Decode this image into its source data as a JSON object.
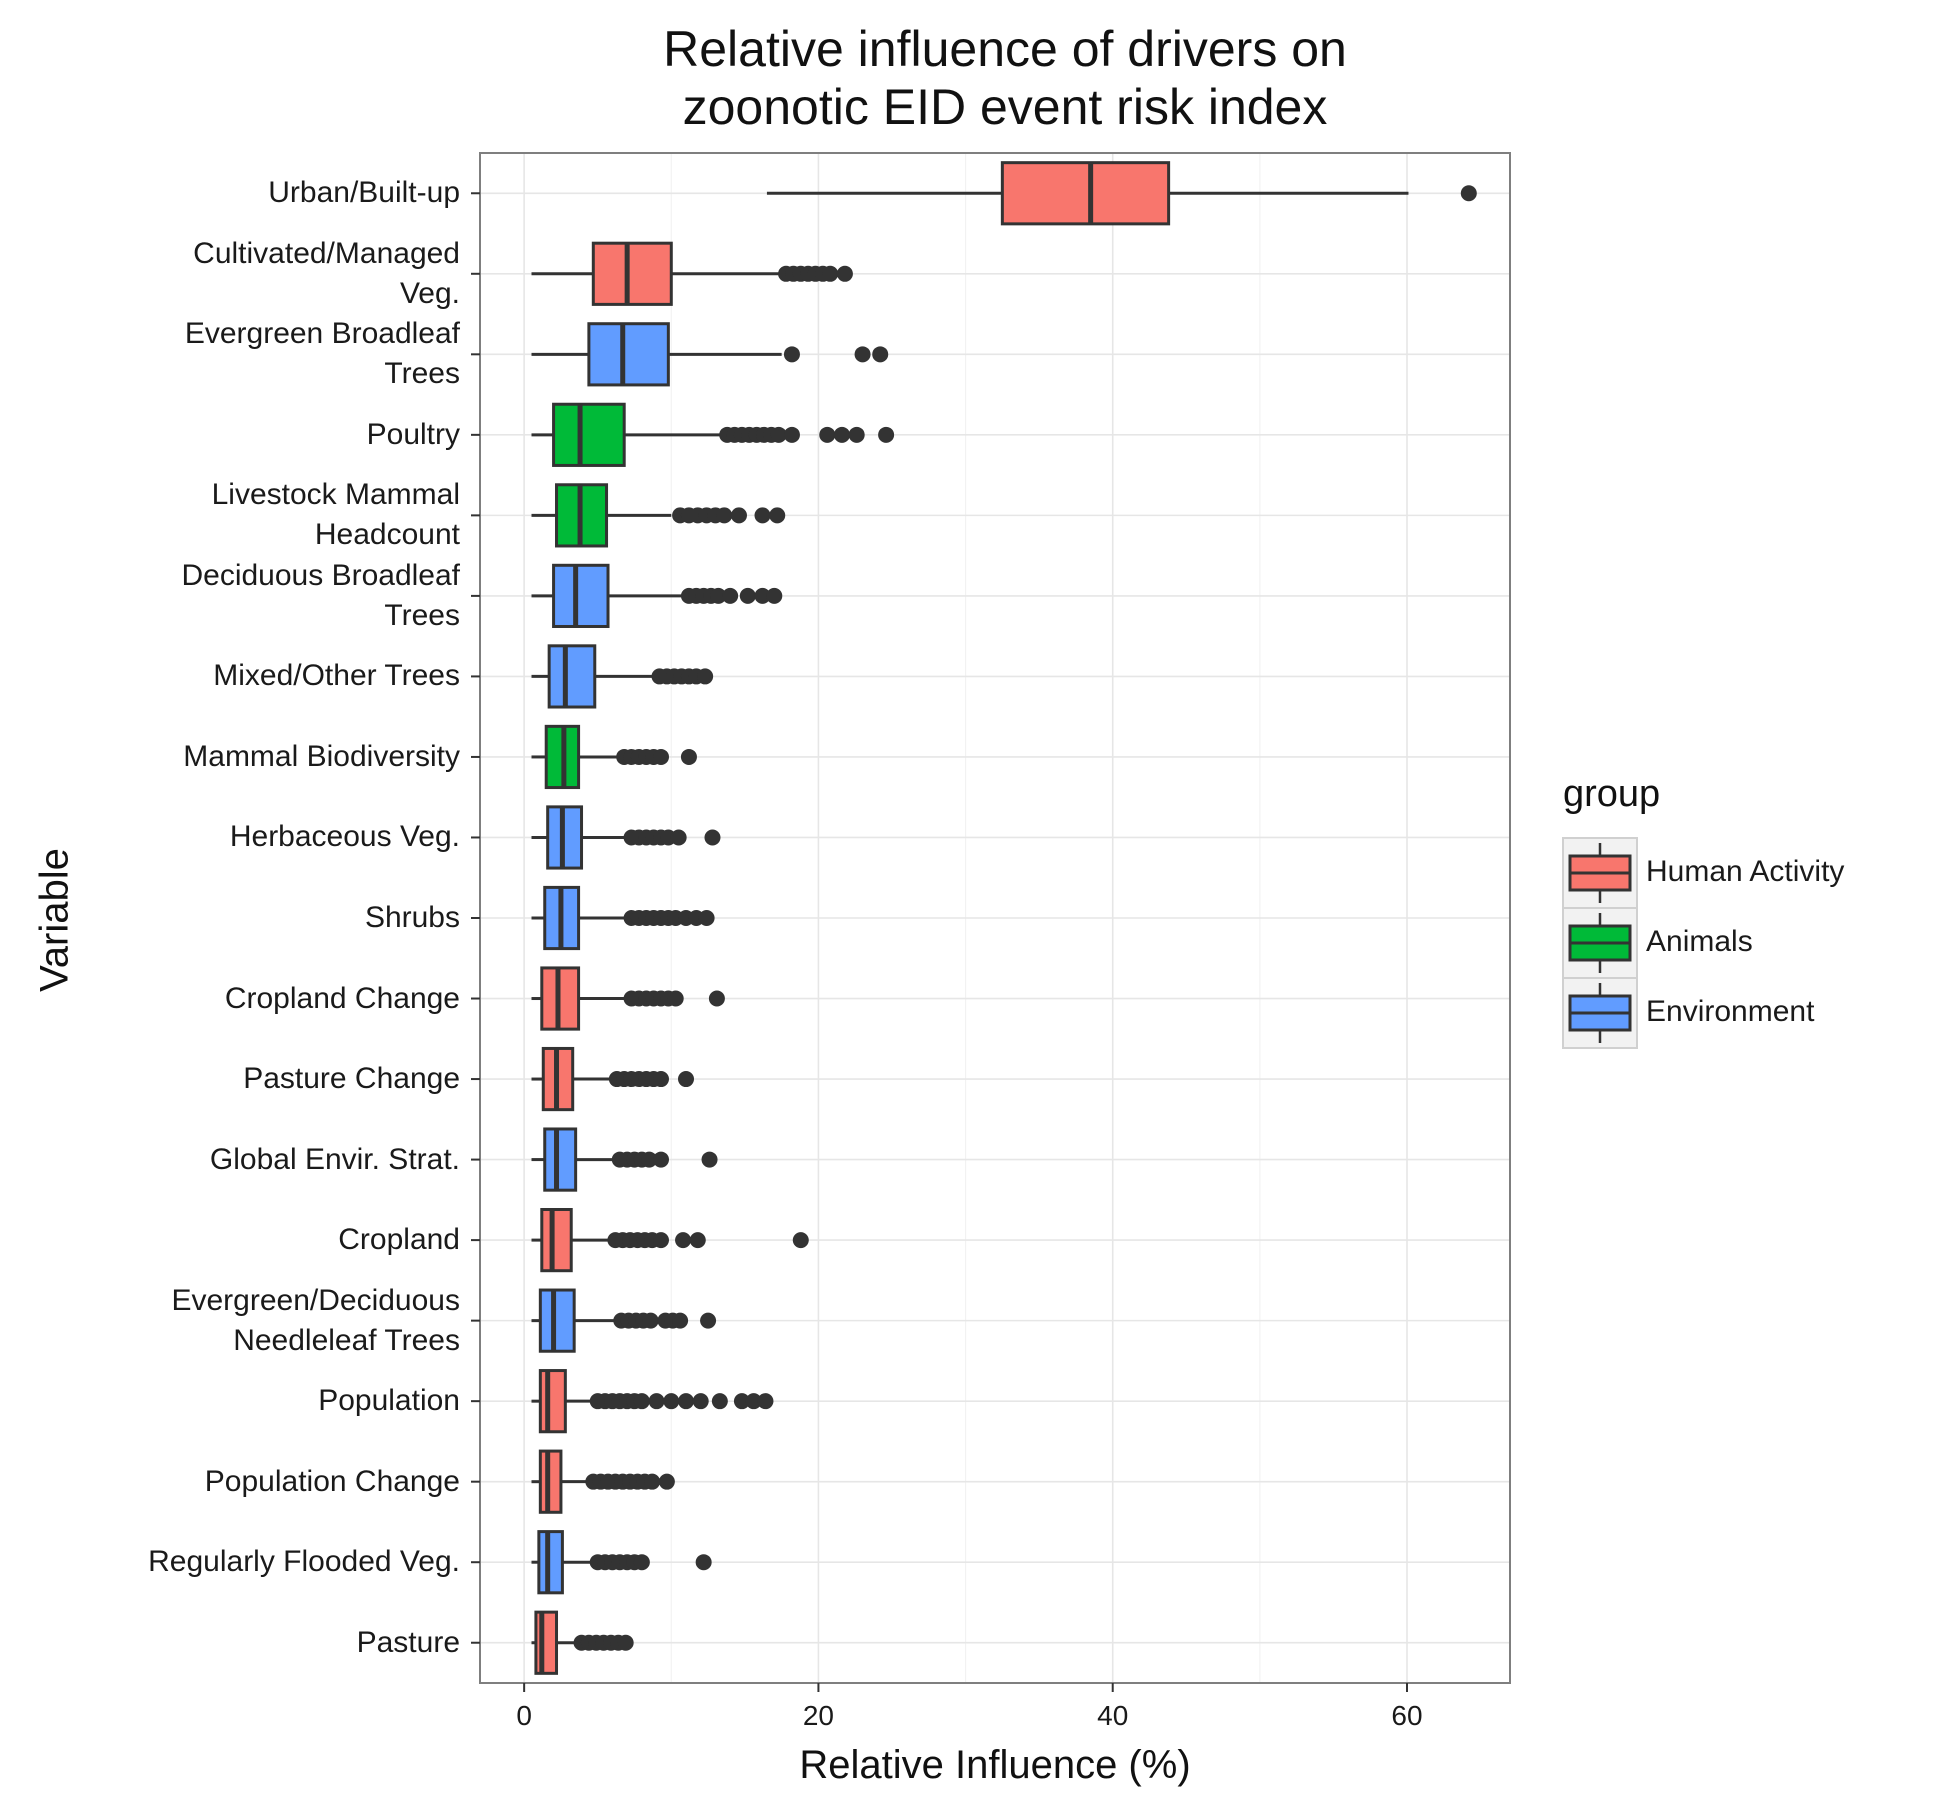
{
  "chart_data": {
    "type": "boxplot",
    "title_lines": [
      "Relative influence of drivers on",
      "zoonotic EID event risk index"
    ],
    "xlabel": "Relative Influence (%)",
    "ylabel": "Variable",
    "xlim": [
      -3,
      67
    ],
    "xticks": [
      0,
      20,
      40,
      60
    ],
    "grid": true,
    "legend": {
      "title": "group",
      "placement": "right",
      "entries": [
        {
          "name": "Human Activity",
          "color": "#F8766D"
        },
        {
          "name": "Animals",
          "color": "#00BA38"
        },
        {
          "name": "Environment",
          "color": "#619CFF"
        }
      ]
    },
    "boxes": [
      {
        "label": [
          "Urban/Built-up"
        ],
        "group": "Human Activity",
        "lower_whisker": 16.5,
        "q1": 32.5,
        "median": 38.5,
        "q3": 43.8,
        "upper_whisker": 60.1,
        "outliers": [
          64.2
        ]
      },
      {
        "label": [
          "Cultivated/Managed",
          "Veg."
        ],
        "group": "Human Activity",
        "lower_whisker": 0.5,
        "q1": 4.7,
        "median": 7.0,
        "q3": 10.0,
        "upper_whisker": 17.5,
        "outliers": [
          17.8,
          18.3,
          18.8,
          19.3,
          19.8,
          20.3,
          20.8,
          21.8
        ]
      },
      {
        "label": [
          "Evergreen Broadleaf",
          "Trees"
        ],
        "group": "Environment",
        "lower_whisker": 0.5,
        "q1": 4.4,
        "median": 6.7,
        "q3": 9.8,
        "upper_whisker": 17.5,
        "outliers": [
          18.2,
          23.0,
          24.2
        ]
      },
      {
        "label": [
          "Poultry"
        ],
        "group": "Animals",
        "lower_whisker": 0.5,
        "q1": 2.0,
        "median": 3.8,
        "q3": 6.8,
        "upper_whisker": 13.5,
        "outliers": [
          13.8,
          14.3,
          14.8,
          15.3,
          15.8,
          16.3,
          16.8,
          17.3,
          18.2,
          20.6,
          21.6,
          22.6,
          24.6
        ]
      },
      {
        "label": [
          "Livestock Mammal",
          "Headcount"
        ],
        "group": "Animals",
        "lower_whisker": 0.5,
        "q1": 2.2,
        "median": 3.8,
        "q3": 5.6,
        "upper_whisker": 10.0,
        "outliers": [
          10.6,
          11.2,
          11.8,
          12.4,
          13.0,
          13.6,
          14.6,
          16.2,
          17.2
        ]
      },
      {
        "label": [
          "Deciduous Broadleaf",
          "Trees"
        ],
        "group": "Environment",
        "lower_whisker": 0.5,
        "q1": 2.0,
        "median": 3.5,
        "q3": 5.7,
        "upper_whisker": 10.8,
        "outliers": [
          11.2,
          11.7,
          12.2,
          12.7,
          13.2,
          14.0,
          15.2,
          16.2,
          17.0
        ]
      },
      {
        "label": [
          "Mixed/Other Trees"
        ],
        "group": "Environment",
        "lower_whisker": 0.5,
        "q1": 1.7,
        "median": 2.8,
        "q3": 4.8,
        "upper_whisker": 9.0,
        "outliers": [
          9.2,
          9.7,
          10.2,
          10.7,
          11.2,
          11.7,
          12.3
        ]
      },
      {
        "label": [
          "Mammal Biodiversity"
        ],
        "group": "Animals",
        "lower_whisker": 0.5,
        "q1": 1.5,
        "median": 2.7,
        "q3": 3.7,
        "upper_whisker": 6.5,
        "outliers": [
          6.8,
          7.3,
          7.8,
          8.3,
          8.8,
          9.3,
          11.2
        ]
      },
      {
        "label": [
          "Herbaceous Veg."
        ],
        "group": "Environment",
        "lower_whisker": 0.5,
        "q1": 1.6,
        "median": 2.6,
        "q3": 3.9,
        "upper_whisker": 7.0,
        "outliers": [
          7.3,
          7.8,
          8.3,
          8.8,
          9.3,
          9.8,
          10.5,
          12.8
        ]
      },
      {
        "label": [
          "Shrubs"
        ],
        "group": "Environment",
        "lower_whisker": 0.5,
        "q1": 1.4,
        "median": 2.5,
        "q3": 3.7,
        "upper_whisker": 7.0,
        "outliers": [
          7.3,
          7.8,
          8.3,
          8.8,
          9.3,
          9.8,
          10.3,
          11.0,
          11.7,
          12.4
        ]
      },
      {
        "label": [
          "Cropland Change"
        ],
        "group": "Human Activity",
        "lower_whisker": 0.5,
        "q1": 1.2,
        "median": 2.3,
        "q3": 3.7,
        "upper_whisker": 7.0,
        "outliers": [
          7.3,
          7.8,
          8.3,
          8.8,
          9.3,
          9.8,
          10.3,
          13.1
        ]
      },
      {
        "label": [
          "Pasture Change"
        ],
        "group": "Human Activity",
        "lower_whisker": 0.5,
        "q1": 1.3,
        "median": 2.2,
        "q3": 3.3,
        "upper_whisker": 6.0,
        "outliers": [
          6.3,
          6.8,
          7.3,
          7.8,
          8.3,
          8.8,
          9.3,
          11.0
        ]
      },
      {
        "label": [
          "Global Envir. Strat."
        ],
        "group": "Environment",
        "lower_whisker": 0.5,
        "q1": 1.4,
        "median": 2.2,
        "q3": 3.5,
        "upper_whisker": 6.2,
        "outliers": [
          6.5,
          7.0,
          7.5,
          8.0,
          8.5,
          9.3,
          12.6
        ]
      },
      {
        "label": [
          "Cropland"
        ],
        "group": "Human Activity",
        "lower_whisker": 0.5,
        "q1": 1.2,
        "median": 1.9,
        "q3": 3.2,
        "upper_whisker": 5.8,
        "outliers": [
          6.2,
          6.7,
          7.2,
          7.7,
          8.2,
          8.7,
          9.3,
          10.8,
          11.8,
          18.8
        ]
      },
      {
        "label": [
          "Evergreen/Deciduous",
          "Needleleaf Trees"
        ],
        "group": "Environment",
        "lower_whisker": 0.5,
        "q1": 1.1,
        "median": 2.0,
        "q3": 3.4,
        "upper_whisker": 6.3,
        "outliers": [
          6.6,
          7.1,
          7.6,
          8.1,
          8.6,
          9.6,
          10.1,
          10.6,
          12.5
        ]
      },
      {
        "label": [
          "Population"
        ],
        "group": "Human Activity",
        "lower_whisker": 0.5,
        "q1": 1.1,
        "median": 1.6,
        "q3": 2.8,
        "upper_whisker": 4.8,
        "outliers": [
          5.0,
          5.5,
          6.0,
          6.5,
          7.0,
          7.5,
          8.0,
          9.0,
          10.0,
          11.0,
          12.0,
          13.3,
          14.8,
          15.6,
          16.4
        ]
      },
      {
        "label": [
          "Population Change"
        ],
        "group": "Human Activity",
        "lower_whisker": 0.5,
        "q1": 1.1,
        "median": 1.6,
        "q3": 2.5,
        "upper_whisker": 4.5,
        "outliers": [
          4.7,
          5.2,
          5.7,
          6.2,
          6.7,
          7.2,
          7.7,
          8.2,
          8.7,
          9.7
        ]
      },
      {
        "label": [
          "Regularly Flooded Veg."
        ],
        "group": "Environment",
        "lower_whisker": 0.5,
        "q1": 1.0,
        "median": 1.6,
        "q3": 2.6,
        "upper_whisker": 4.7,
        "outliers": [
          5.0,
          5.5,
          6.0,
          6.5,
          7.0,
          7.5,
          8.0,
          12.2
        ]
      },
      {
        "label": [
          "Pasture"
        ],
        "group": "Human Activity",
        "lower_whisker": 0.5,
        "q1": 0.8,
        "median": 1.2,
        "q3": 2.2,
        "upper_whisker": 3.6,
        "outliers": [
          3.9,
          4.4,
          4.9,
          5.4,
          5.9,
          6.4,
          6.9
        ]
      }
    ]
  }
}
